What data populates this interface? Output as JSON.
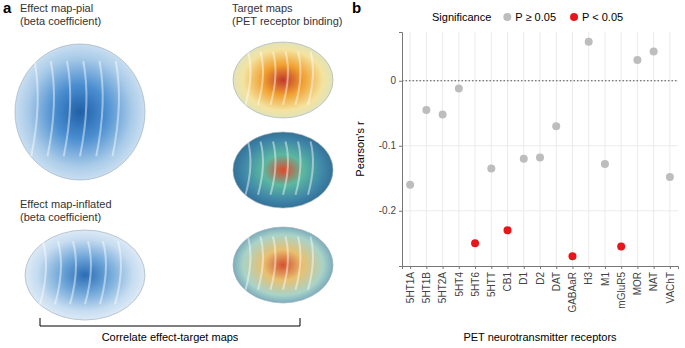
{
  "panel_labels": [
    "a",
    "b"
  ],
  "panel_a": {
    "effect_pial": [
      "Effect map-pial",
      "(beta coefficient)"
    ],
    "target_maps": [
      "Target maps",
      "(PET receptor binding)"
    ],
    "effect_inflated": [
      "Effect map-inflated",
      "(beta coefficient)"
    ],
    "correlate": "Correlate effect-target maps"
  },
  "chart_data": {
    "type": "scatter",
    "x_label": "PET neurotransmitter receptors",
    "y_label": "Pearson's r",
    "legend_title": "Significance",
    "legend": "top",
    "grid": true,
    "reference_line": 0,
    "categories": [
      "5HT1A",
      "5HT1B",
      "5HT2A",
      "5HT4",
      "5HT6",
      "5HTT",
      "CB1",
      "D1",
      "D2",
      "DAT",
      "GABAaR",
      "H3",
      "M1",
      "mGluR5",
      "MOR",
      "NAT",
      "VAChT"
    ],
    "series": [
      {
        "name": "P ≥ 0.05",
        "color": "#bdbdbd",
        "marker": "circle",
        "values": [
          -0.16,
          -0.045,
          -0.052,
          -0.012,
          null,
          -0.135,
          null,
          -0.12,
          -0.118,
          -0.07,
          null,
          0.06,
          -0.128,
          null,
          0.032,
          0.045,
          -0.148
        ]
      },
      {
        "name": "P < 0.05",
        "color": "#e8161b",
        "marker": "circle",
        "values": [
          null,
          null,
          null,
          null,
          -0.25,
          null,
          -0.23,
          null,
          null,
          null,
          -0.27,
          null,
          null,
          -0.255,
          null,
          null,
          null
        ]
      }
    ],
    "ylim": [
      -0.285,
      0.075
    ],
    "yticks": [
      -0.2,
      -0.1,
      0
    ]
  }
}
